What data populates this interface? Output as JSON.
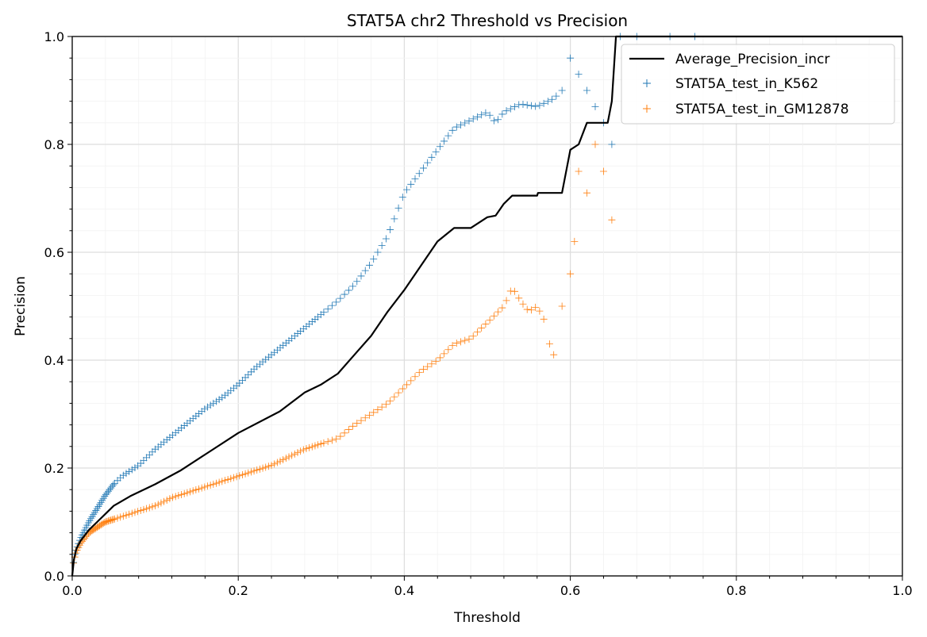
{
  "chart_data": {
    "type": "scatter",
    "title": "STAT5A chr2 Threshold vs Precision",
    "xlabel": "Threshold",
    "ylabel": "Precision",
    "xlim": [
      0,
      1
    ],
    "ylim": [
      0,
      1
    ],
    "xticks": [
      "0.0",
      "0.2",
      "0.4",
      "0.6",
      "0.8",
      "1.0"
    ],
    "yticks": [
      "0.0",
      "0.2",
      "0.4",
      "0.6",
      "0.8",
      "1.0"
    ],
    "grid": "major and minor",
    "legend_position": "top-right",
    "series": [
      {
        "name": "Average_Precision_incr",
        "kind": "line",
        "color": "#000000",
        "points": [
          [
            0.0,
            0.0
          ],
          [
            0.002,
            0.03
          ],
          [
            0.005,
            0.05
          ],
          [
            0.01,
            0.065
          ],
          [
            0.02,
            0.085
          ],
          [
            0.03,
            0.1
          ],
          [
            0.04,
            0.115
          ],
          [
            0.05,
            0.13
          ],
          [
            0.07,
            0.148
          ],
          [
            0.1,
            0.17
          ],
          [
            0.13,
            0.195
          ],
          [
            0.16,
            0.225
          ],
          [
            0.2,
            0.265
          ],
          [
            0.25,
            0.305
          ],
          [
            0.28,
            0.34
          ],
          [
            0.3,
            0.355
          ],
          [
            0.32,
            0.375
          ],
          [
            0.34,
            0.41
          ],
          [
            0.36,
            0.445
          ],
          [
            0.38,
            0.49
          ],
          [
            0.4,
            0.53
          ],
          [
            0.42,
            0.575
          ],
          [
            0.44,
            0.62
          ],
          [
            0.46,
            0.645
          ],
          [
            0.48,
            0.645
          ],
          [
            0.5,
            0.665
          ],
          [
            0.51,
            0.668
          ],
          [
            0.52,
            0.69
          ],
          [
            0.53,
            0.705
          ],
          [
            0.56,
            0.705
          ],
          [
            0.561,
            0.71
          ],
          [
            0.59,
            0.71
          ],
          [
            0.6,
            0.79
          ],
          [
            0.61,
            0.8
          ],
          [
            0.62,
            0.84
          ],
          [
            0.645,
            0.84
          ],
          [
            0.65,
            0.88
          ],
          [
            0.655,
            1.0
          ],
          [
            1.0,
            1.0
          ]
        ]
      },
      {
        "name": "STAT5A_test_in_K562",
        "kind": "scatter",
        "marker": "+",
        "color": "#1f77b4",
        "points": [
          [
            0.0,
            0.0
          ],
          [
            0.001,
            0.02
          ],
          [
            0.003,
            0.04
          ],
          [
            0.005,
            0.05
          ],
          [
            0.01,
            0.07
          ],
          [
            0.02,
            0.1
          ],
          [
            0.03,
            0.125
          ],
          [
            0.04,
            0.15
          ],
          [
            0.05,
            0.17
          ],
          [
            0.06,
            0.185
          ],
          [
            0.08,
            0.205
          ],
          [
            0.1,
            0.235
          ],
          [
            0.12,
            0.26
          ],
          [
            0.14,
            0.285
          ],
          [
            0.16,
            0.31
          ],
          [
            0.18,
            0.33
          ],
          [
            0.2,
            0.355
          ],
          [
            0.22,
            0.385
          ],
          [
            0.24,
            0.41
          ],
          [
            0.26,
            0.435
          ],
          [
            0.28,
            0.46
          ],
          [
            0.3,
            0.485
          ],
          [
            0.32,
            0.51
          ],
          [
            0.34,
            0.54
          ],
          [
            0.36,
            0.58
          ],
          [
            0.38,
            0.63
          ],
          [
            0.39,
            0.67
          ],
          [
            0.4,
            0.71
          ],
          [
            0.42,
            0.75
          ],
          [
            0.44,
            0.79
          ],
          [
            0.46,
            0.83
          ],
          [
            0.48,
            0.845
          ],
          [
            0.5,
            0.86
          ],
          [
            0.51,
            0.84
          ],
          [
            0.52,
            0.86
          ],
          [
            0.54,
            0.875
          ],
          [
            0.56,
            0.87
          ],
          [
            0.58,
            0.885
          ],
          [
            0.59,
            0.9
          ],
          [
            0.6,
            0.96
          ],
          [
            0.61,
            0.93
          ],
          [
            0.62,
            0.9
          ],
          [
            0.63,
            0.87
          ],
          [
            0.64,
            0.84
          ],
          [
            0.65,
            0.8
          ],
          [
            0.66,
            1.0
          ],
          [
            0.68,
            1.0
          ],
          [
            0.72,
            1.0
          ],
          [
            0.75,
            1.0
          ]
        ]
      },
      {
        "name": "STAT5A_test_in_GM12878",
        "kind": "scatter",
        "marker": "+",
        "color": "#ff7f0e",
        "points": [
          [
            0.0,
            0.0
          ],
          [
            0.001,
            0.02
          ],
          [
            0.003,
            0.035
          ],
          [
            0.005,
            0.045
          ],
          [
            0.01,
            0.06
          ],
          [
            0.02,
            0.08
          ],
          [
            0.03,
            0.09
          ],
          [
            0.04,
            0.1
          ],
          [
            0.06,
            0.11
          ],
          [
            0.08,
            0.12
          ],
          [
            0.1,
            0.13
          ],
          [
            0.12,
            0.145
          ],
          [
            0.14,
            0.155
          ],
          [
            0.16,
            0.165
          ],
          [
            0.18,
            0.175
          ],
          [
            0.2,
            0.185
          ],
          [
            0.22,
            0.195
          ],
          [
            0.24,
            0.205
          ],
          [
            0.26,
            0.22
          ],
          [
            0.28,
            0.235
          ],
          [
            0.3,
            0.245
          ],
          [
            0.32,
            0.255
          ],
          [
            0.34,
            0.28
          ],
          [
            0.36,
            0.3
          ],
          [
            0.38,
            0.32
          ],
          [
            0.4,
            0.35
          ],
          [
            0.42,
            0.38
          ],
          [
            0.44,
            0.4
          ],
          [
            0.46,
            0.43
          ],
          [
            0.48,
            0.44
          ],
          [
            0.5,
            0.47
          ],
          [
            0.52,
            0.5
          ],
          [
            0.53,
            0.535
          ],
          [
            0.54,
            0.51
          ],
          [
            0.55,
            0.49
          ],
          [
            0.56,
            0.5
          ],
          [
            0.57,
            0.47
          ],
          [
            0.575,
            0.43
          ],
          [
            0.58,
            0.41
          ],
          [
            0.59,
            0.5
          ],
          [
            0.6,
            0.56
          ],
          [
            0.605,
            0.62
          ],
          [
            0.61,
            0.75
          ],
          [
            0.62,
            0.71
          ],
          [
            0.63,
            0.8
          ],
          [
            0.64,
            0.75
          ],
          [
            0.65,
            0.66
          ]
        ]
      }
    ]
  }
}
